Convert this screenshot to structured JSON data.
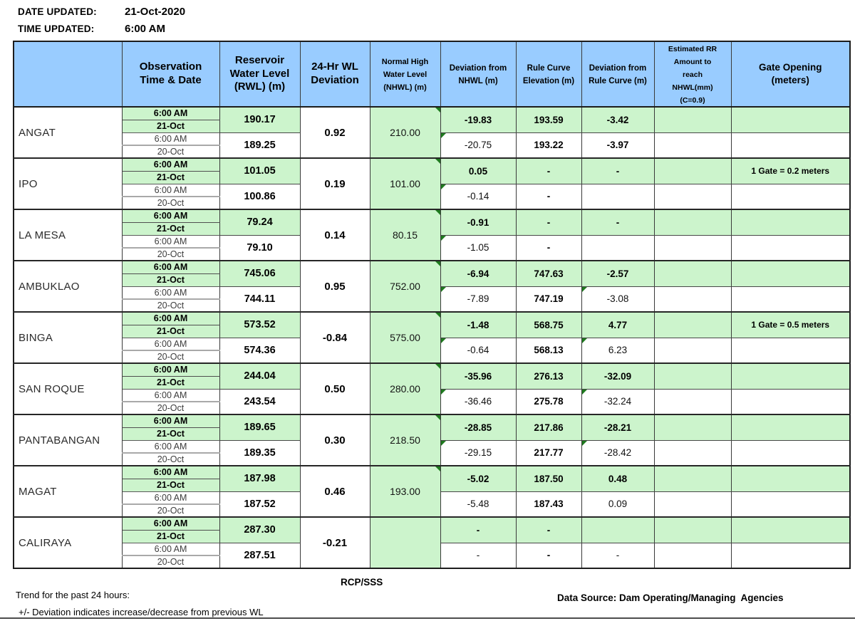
{
  "meta": {
    "date_updated_label": "DATE UPDATED:",
    "date_updated": "21-Oct-2020",
    "time_updated_label": "TIME UPDATED:",
    "time_updated": "6:00 AM"
  },
  "colors": {
    "header_blue": "#99CCFF",
    "cell_green": "#CCF4CC",
    "triangle_green": "#1F7A1F"
  },
  "table": {
    "headers": {
      "dam": "",
      "observation": "Observation\nTime & Date",
      "rwl": "Reservoir\nWater Level\n(RWL) (m)",
      "dev24": "24-Hr WL\nDeviation",
      "nhwl": "Normal High\nWater Level\n(NHWL) (m)",
      "dev_nhwl": "Deviation from\nNHWL (m)",
      "rule_curve": "Rule Curve\nElevation (m)",
      "dev_rule_curve": "Deviation from\nRule Curve (m)",
      "est_rr": "Estimated RR\nAmount to\nreach\nNHWL(mm)\n(C=0.9)",
      "gate": "Gate Opening\n(meters)"
    },
    "rows": [
      {
        "dam": "ANGAT",
        "obs": [
          {
            "time": "6:00 AM",
            "date": "21-Oct"
          },
          {
            "time": "6:00 AM",
            "date": "20-Oct"
          }
        ],
        "rwl": [
          "190.17",
          "189.25"
        ],
        "wl_deviation_24hr": "0.92",
        "nhwl": "210.00",
        "dev_nhwl": [
          "-19.83",
          "-20.75"
        ],
        "rule_curve": [
          "193.59",
          "193.22"
        ],
        "dev_rule_curve": [
          "-3.42",
          "-3.97"
        ],
        "est_rr": [
          "",
          ""
        ],
        "gate_opening": [
          "",
          ""
        ],
        "flags": {
          "nhwl_tri": true,
          "dev_nhwl_tri": true,
          "dev_rc_tri": false,
          "dev_rc_white_bold": true
        }
      },
      {
        "dam": "IPO",
        "obs": [
          {
            "time": "6:00 AM",
            "date": "21-Oct"
          },
          {
            "time": "6:00 AM",
            "date": "20-Oct"
          }
        ],
        "rwl": [
          "101.05",
          "100.86"
        ],
        "wl_deviation_24hr": "0.19",
        "nhwl": "101.00",
        "dev_nhwl": [
          "0.05",
          "-0.14"
        ],
        "rule_curve": [
          "-",
          "-"
        ],
        "dev_rule_curve": [
          "-",
          ""
        ],
        "est_rr": [
          "",
          ""
        ],
        "gate_opening": [
          "1 Gate = 0.2 meters",
          ""
        ],
        "flags": {
          "nhwl_tri": true,
          "dev_nhwl_tri": true,
          "dev_rc_tri": false,
          "dev_rc_white_bold": false
        }
      },
      {
        "dam": "LA MESA",
        "obs": [
          {
            "time": "6:00 AM",
            "date": "21-Oct"
          },
          {
            "time": "6:00 AM",
            "date": "20-Oct"
          }
        ],
        "rwl": [
          "79.24",
          "79.10"
        ],
        "wl_deviation_24hr": "0.14",
        "nhwl": "80.15",
        "dev_nhwl": [
          "-0.91",
          "-1.05"
        ],
        "rule_curve": [
          "-",
          "-"
        ],
        "dev_rule_curve": [
          "-",
          ""
        ],
        "est_rr": [
          "",
          ""
        ],
        "gate_opening": [
          "",
          ""
        ],
        "flags": {
          "nhwl_tri": true,
          "dev_nhwl_tri": true,
          "dev_rc_tri": false,
          "dev_rc_white_bold": false
        }
      },
      {
        "dam": "AMBUKLAO",
        "obs": [
          {
            "time": "6:00 AM",
            "date": "21-Oct"
          },
          {
            "time": "6:00 AM",
            "date": "20-Oct"
          }
        ],
        "rwl": [
          "745.06",
          "744.11"
        ],
        "wl_deviation_24hr": "0.95",
        "nhwl": "752.00",
        "dev_nhwl": [
          "-6.94",
          "-7.89"
        ],
        "rule_curve": [
          "747.63",
          "747.19"
        ],
        "dev_rule_curve": [
          "-2.57",
          "-3.08"
        ],
        "est_rr": [
          "",
          ""
        ],
        "gate_opening": [
          "",
          ""
        ],
        "flags": {
          "nhwl_tri": true,
          "dev_nhwl_tri": true,
          "dev_rc_tri": true,
          "dev_rc_white_bold": false
        }
      },
      {
        "dam": "BINGA",
        "obs": [
          {
            "time": "6:00 AM",
            "date": "21-Oct"
          },
          {
            "time": "6:00 AM",
            "date": "20-Oct"
          }
        ],
        "rwl": [
          "573.52",
          "574.36"
        ],
        "wl_deviation_24hr": "-0.84",
        "nhwl": "575.00",
        "dev_nhwl": [
          "-1.48",
          "-0.64"
        ],
        "rule_curve": [
          "568.75",
          "568.13"
        ],
        "dev_rule_curve": [
          "4.77",
          "6.23"
        ],
        "est_rr": [
          "",
          ""
        ],
        "gate_opening": [
          "1 Gate = 0.5 meters",
          ""
        ],
        "flags": {
          "nhwl_tri": true,
          "dev_nhwl_tri": true,
          "dev_rc_tri": true,
          "dev_rc_white_bold": false
        }
      },
      {
        "dam": "SAN ROQUE",
        "obs": [
          {
            "time": "6:00 AM",
            "date": "21-Oct"
          },
          {
            "time": "6:00 AM",
            "date": "20-Oct"
          }
        ],
        "rwl": [
          "244.04",
          "243.54"
        ],
        "wl_deviation_24hr": "0.50",
        "nhwl": "280.00",
        "dev_nhwl": [
          "-35.96",
          "-36.46"
        ],
        "rule_curve": [
          "276.13",
          "275.78"
        ],
        "dev_rule_curve": [
          "-32.09",
          "-32.24"
        ],
        "est_rr": [
          "",
          ""
        ],
        "gate_opening": [
          "",
          ""
        ],
        "flags": {
          "nhwl_tri": true,
          "dev_nhwl_tri": true,
          "dev_rc_tri": true,
          "dev_rc_white_bold": false
        }
      },
      {
        "dam": "PANTABANGAN",
        "obs": [
          {
            "time": "6:00 AM",
            "date": "21-Oct"
          },
          {
            "time": "6:00 AM",
            "date": "20-Oct"
          }
        ],
        "rwl": [
          "189.65",
          "189.35"
        ],
        "wl_deviation_24hr": "0.30",
        "nhwl": "218.50",
        "dev_nhwl": [
          "-28.85",
          "-29.15"
        ],
        "rule_curve": [
          "217.86",
          "217.77"
        ],
        "dev_rule_curve": [
          "-28.21",
          "-28.42"
        ],
        "est_rr": [
          "",
          ""
        ],
        "gate_opening": [
          "",
          ""
        ],
        "flags": {
          "nhwl_tri": true,
          "dev_nhwl_tri": true,
          "dev_rc_tri": true,
          "dev_rc_white_bold": false
        }
      },
      {
        "dam": "MAGAT",
        "obs": [
          {
            "time": "6:00 AM",
            "date": "21-Oct"
          },
          {
            "time": "6:00 AM",
            "date": "20-Oct"
          }
        ],
        "rwl": [
          "187.98",
          "187.52"
        ],
        "wl_deviation_24hr": "0.46",
        "nhwl": "193.00",
        "dev_nhwl": [
          "-5.02",
          "-5.48"
        ],
        "rule_curve": [
          "187.50",
          "187.43"
        ],
        "dev_rule_curve": [
          "0.48",
          "0.09"
        ],
        "est_rr": [
          "",
          ""
        ],
        "gate_opening": [
          "",
          ""
        ],
        "flags": {
          "nhwl_tri": true,
          "dev_nhwl_tri": false,
          "dev_rc_tri": false,
          "dev_rc_white_bold": false
        }
      },
      {
        "dam": "CALIRAYA",
        "obs": [
          {
            "time": "6:00 AM",
            "date": "21-Oct"
          },
          {
            "time": "6:00 AM",
            "date": "20-Oct"
          }
        ],
        "rwl": [
          "287.30",
          "287.51"
        ],
        "wl_deviation_24hr": "-0.21",
        "nhwl": "",
        "dev_nhwl": [
          "-",
          "-"
        ],
        "rule_curve": [
          "-",
          "-"
        ],
        "dev_rule_curve": [
          "",
          "-"
        ],
        "est_rr": [
          "",
          ""
        ],
        "gate_opening": [
          "",
          ""
        ],
        "flags": {
          "nhwl_tri": false,
          "dev_nhwl_tri": false,
          "dev_rc_tri": false,
          "dev_rc_white_bold": false
        }
      }
    ]
  },
  "footer": {
    "rcp": "RCP/SSS",
    "trend_title": "Trend for the past 24 hours:",
    "deviation_note": "+/- Deviation indicates increase/decrease from previous WL",
    "data_source": "Data Source: Dam Operating/Managing  Agencies"
  }
}
